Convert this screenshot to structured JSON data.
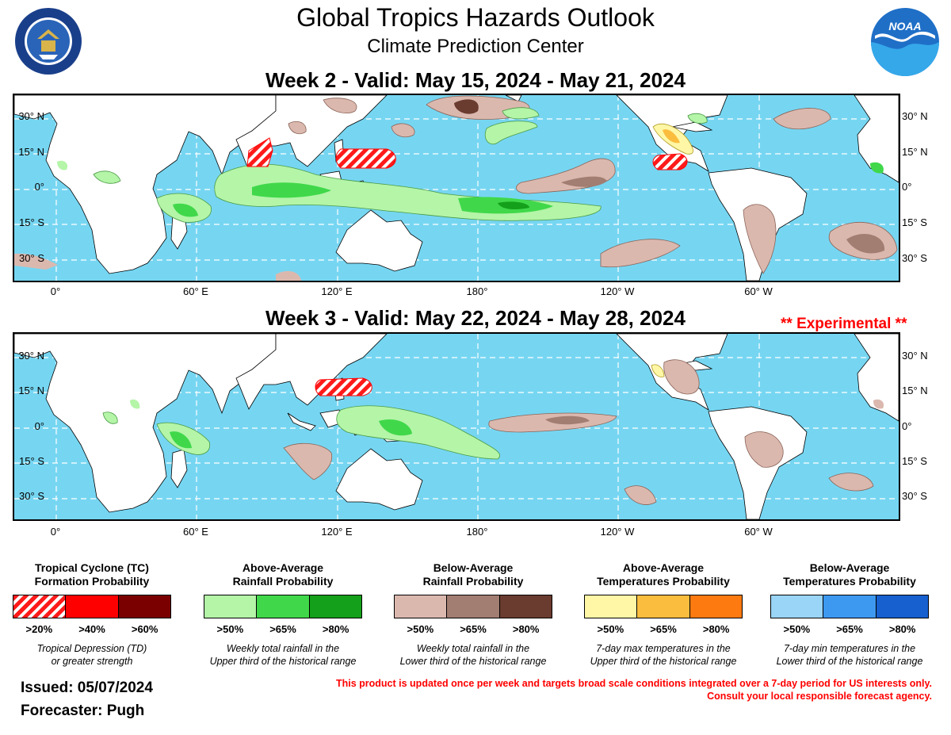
{
  "header": {
    "title": "Global Tropics Hazards Outlook",
    "subtitle": "Climate Prediction Center"
  },
  "logos": {
    "left": "Department of Commerce seal",
    "left_text": "DEPARTMENT OF COMMERCE · UNITED STATES OF AMERICA",
    "right": "NOAA",
    "right_text": "NOAA"
  },
  "week2": {
    "title": "Week 2 - Valid: May 15, 2024 - May 21, 2024"
  },
  "week3": {
    "title": "Week 3 - Valid: May 22, 2024 - May 28, 2024",
    "note": "** Experimental **"
  },
  "axes": {
    "lat_labels": [
      "30° N",
      "15° N",
      "0°",
      "15° S",
      "30° S"
    ],
    "lon_labels": [
      "0°",
      "60° E",
      "120° E",
      "180°",
      "120° W",
      "60° W"
    ]
  },
  "legend": [
    {
      "title_line1": "Tropical Cyclone (TC)",
      "title_line2": "Formation Probability",
      "levels": [
        ">20%",
        ">40%",
        ">60%"
      ],
      "colors": [
        "hatch-red",
        "#ff0000",
        "#7a0000"
      ],
      "desc_line1": "Tropical Depression (TD)",
      "desc_line2": "or greater strength"
    },
    {
      "title_line1": "Above-Average",
      "title_line2": "Rainfall Probability",
      "levels": [
        ">50%",
        ">65%",
        ">80%"
      ],
      "colors": [
        "#b4f5a8",
        "#40d84a",
        "#14a01a"
      ],
      "desc_line1": "Weekly total rainfall in the",
      "desc_line2": "Upper third of the historical range"
    },
    {
      "title_line1": "Below-Average",
      "title_line2": "Rainfall Probability",
      "levels": [
        ">50%",
        ">65%",
        ">80%"
      ],
      "colors": [
        "#dbb8ae",
        "#a27d72",
        "#6a3b2f"
      ],
      "desc_line1": "Weekly total rainfall in the",
      "desc_line2": "Lower third of the historical range"
    },
    {
      "title_line1": "Above-Average",
      "title_line2": "Temperatures Probability",
      "levels": [
        ">50%",
        ">65%",
        ">80%"
      ],
      "colors": [
        "#fff7a6",
        "#fbbd3e",
        "#fc7a10"
      ],
      "desc_line1": "7-day max temperatures in the",
      "desc_line2": "Upper third of the historical range"
    },
    {
      "title_line1": "Below-Average",
      "title_line2": "Temperatures Probability",
      "levels": [
        ">50%",
        ">65%",
        ">80%"
      ],
      "colors": [
        "#9ad4f7",
        "#3d99f0",
        "#1660cf"
      ],
      "desc_line1": "7-day min temperatures in the",
      "desc_line2": "Lower third of the historical range"
    }
  ],
  "footer": {
    "issued": "Issued: 05/07/2024",
    "forecaster": "Forecaster: Pugh",
    "disclaimer_line1": "This product is updated once per week and targets broad scale conditions integrated over a 7-day period for US interests only.",
    "disclaimer_line2": "Consult your local responsible forecast agency."
  }
}
